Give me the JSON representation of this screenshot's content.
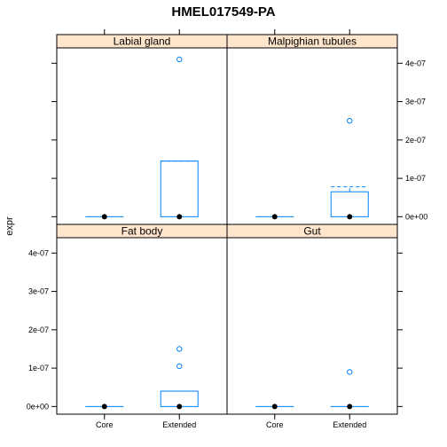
{
  "chart_data": {
    "type": "box",
    "title": "HMEL017549-PA",
    "ylabel": "expr",
    "xlabel": "",
    "categories": [
      "Core",
      "Extended"
    ],
    "y_ticks": [
      0,
      1e-07,
      2e-07,
      3e-07,
      4e-07
    ],
    "y_tick_labels": [
      "0e+00",
      "1e-07",
      "2e-07",
      "3e-07",
      "4e-07"
    ],
    "ylim": [
      -2e-08,
      4.4e-07
    ],
    "grid": false,
    "colors": {
      "strip": "#ffe5cc",
      "box": "#0080ff",
      "median": "#000000",
      "frame": "#000000"
    },
    "panels": [
      {
        "label": "Labial gland",
        "boxes": [
          {
            "category": "Core",
            "min": 0,
            "q1": 0,
            "median": 0,
            "q3": 0,
            "max": 0,
            "outliers": []
          },
          {
            "category": "Extended",
            "min": 0,
            "q1": 0,
            "median": 0,
            "q3": 1.45e-07,
            "max": 1.45e-07,
            "outliers": [
              4.1e-07
            ]
          }
        ]
      },
      {
        "label": "Malpighian tubules",
        "boxes": [
          {
            "category": "Core",
            "min": 0,
            "q1": 0,
            "median": 0,
            "q3": 0,
            "max": 0,
            "outliers": []
          },
          {
            "category": "Extended",
            "min": 0,
            "q1": 0,
            "median": 0,
            "q3": 6.5e-08,
            "max": 7.8e-08,
            "outliers": [
              2.5e-07
            ]
          }
        ]
      },
      {
        "label": "Fat body",
        "boxes": [
          {
            "category": "Core",
            "min": 0,
            "q1": 0,
            "median": 0,
            "q3": 0,
            "max": 0,
            "outliers": []
          },
          {
            "category": "Extended",
            "min": 0,
            "q1": 0,
            "median": 0,
            "q3": 4e-08,
            "max": 4e-08,
            "outliers": [
              1.5e-07,
              1.05e-07
            ]
          }
        ]
      },
      {
        "label": "Gut",
        "boxes": [
          {
            "category": "Core",
            "min": 0,
            "q1": 0,
            "median": 0,
            "q3": 0,
            "max": 0,
            "outliers": []
          },
          {
            "category": "Extended",
            "min": 0,
            "q1": 0,
            "median": 0,
            "q3": 0,
            "max": 0,
            "outliers": [
              9e-08
            ]
          }
        ]
      }
    ]
  }
}
